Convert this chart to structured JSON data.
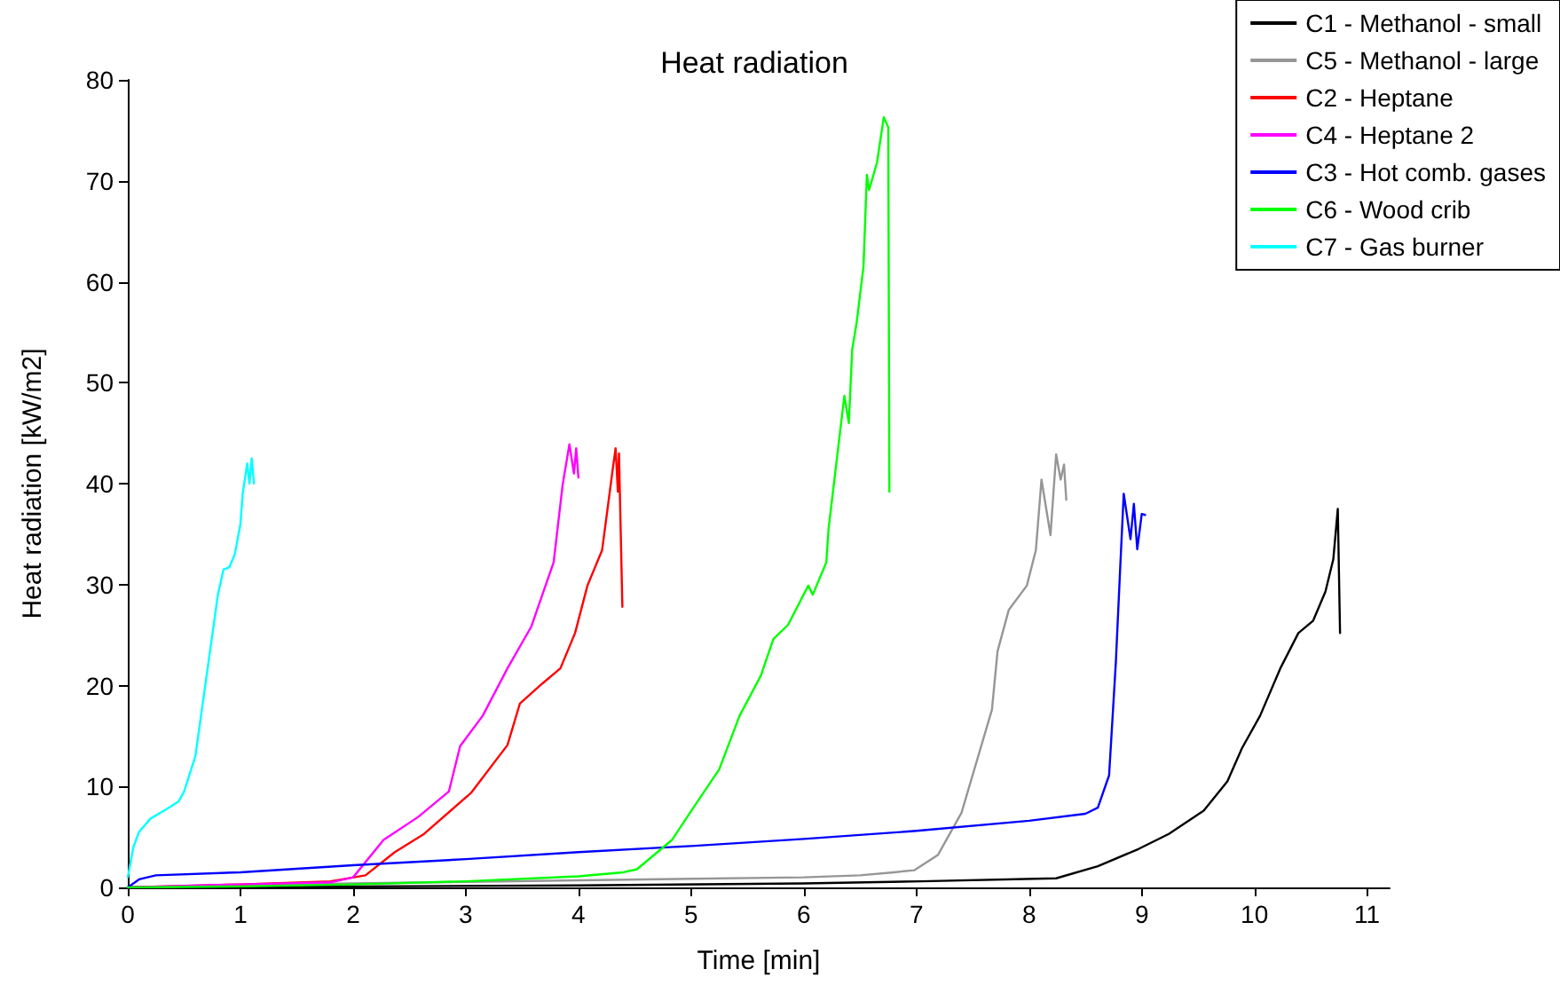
{
  "chart_data": {
    "type": "line",
    "title": "Heat radiation",
    "xlabel": "Time [min]",
    "ylabel": "Heat radiation [kW/m2]",
    "xlim": [
      0,
      11.2
    ],
    "xticks": [
      0,
      1,
      2,
      3,
      4,
      5,
      6,
      7,
      8,
      9,
      10,
      11
    ],
    "ylim": [
      0,
      80
    ],
    "yticks": [
      0,
      10,
      20,
      30,
      40,
      50,
      60,
      70,
      80
    ],
    "grid": false,
    "legend": "top right",
    "marker": "none",
    "line_style": "solid",
    "series": [
      {
        "name": "C1 - Methanol - small",
        "color": "#000000",
        "x": [
          0,
          2,
          4,
          6,
          7.04,
          8.24,
          8.61,
          8.97,
          9.24,
          9.55,
          9.76,
          9.89,
          10.05,
          10.23,
          10.39,
          10.52,
          10.63,
          10.7,
          10.74,
          10.76
        ],
        "values": [
          0,
          0.1,
          0.2,
          0.4,
          0.6,
          0.9,
          2.1,
          3.8,
          5.3,
          7.6,
          10.5,
          13.8,
          17,
          21.7,
          25.2,
          26.4,
          29.3,
          32.5,
          37.5,
          25.2
        ]
      },
      {
        "name": "C5 - Methanol - large",
        "color": "#969696",
        "x": [
          0,
          2,
          4,
          6,
          6.5,
          6.8,
          6.98,
          7.19,
          7.4,
          7.67,
          7.72,
          7.82,
          7.98,
          8.06,
          8.11,
          8.19,
          8.24,
          8.28,
          8.31,
          8.33
        ],
        "values": [
          0,
          0.4,
          0.7,
          1.0,
          1.2,
          1.5,
          1.7,
          3.2,
          7.4,
          17.6,
          23.4,
          27.5,
          29.9,
          33.4,
          40.4,
          34.9,
          42.9,
          40.4,
          41.9,
          38.4
        ]
      },
      {
        "name": "C2 - Heptane",
        "color": "#ff0000",
        "x": [
          0,
          1,
          1.8,
          2.11,
          2.37,
          2.63,
          3.05,
          3.37,
          3.48,
          3.68,
          3.84,
          3.97,
          4.08,
          4.21,
          4.31,
          4.33,
          4.35,
          4.36,
          4.39
        ],
        "values": [
          0,
          0.3,
          0.6,
          1.2,
          3.5,
          5.3,
          9.4,
          14.1,
          18.2,
          20.2,
          21.7,
          25.2,
          29.9,
          33.4,
          41.9,
          43.5,
          39.2,
          43,
          27.8
        ]
      },
      {
        "name": "C4 - Heptane 2",
        "color": "#ff00ff",
        "x": [
          0,
          1,
          1.8,
          2.0,
          2.27,
          2.58,
          2.85,
          2.95,
          3.15,
          3.37,
          3.58,
          3.78,
          3.86,
          3.92,
          3.96,
          3.98,
          4.0
        ],
        "values": [
          0,
          0.3,
          0.5,
          1,
          4.7,
          7,
          9.5,
          14,
          17,
          21.7,
          25.8,
          32.2,
          39.9,
          43.9,
          41,
          43.5,
          40.6
        ]
      },
      {
        "name": "C3 - Hot comb. gases",
        "color": "#0000ff",
        "x": [
          0,
          0.1,
          0.25,
          1,
          2,
          3,
          4,
          5,
          6,
          7,
          8,
          8.5,
          8.61,
          8.71,
          8.77,
          8.81,
          8.84,
          8.88,
          8.9,
          8.93,
          8.96,
          9.0,
          9.03
        ],
        "values": [
          0,
          0.8,
          1.2,
          1.5,
          2.2,
          2.8,
          3.5,
          4.1,
          4.8,
          5.6,
          6.6,
          7.3,
          7.9,
          11.1,
          22.3,
          32,
          39,
          36,
          34.5,
          38,
          33.5,
          37,
          36.9
        ]
      },
      {
        "name": "C6 - Wood crib",
        "color": "#00ff00",
        "x": [
          0,
          1,
          2,
          3,
          4,
          4.4,
          4.52,
          4.83,
          4.99,
          5.25,
          5.43,
          5.62,
          5.73,
          5.86,
          6.04,
          6.08,
          6.2,
          6.22,
          6.36,
          6.4,
          6.43,
          6.47,
          6.53,
          6.56,
          6.58,
          6.65,
          6.71,
          6.75,
          6.76
        ],
        "values": [
          0,
          0.1,
          0.3,
          0.6,
          1.1,
          1.5,
          1.8,
          4.7,
          7.4,
          11.7,
          17,
          21,
          24.6,
          26,
          29.9,
          29,
          32.2,
          35.5,
          48.7,
          46,
          53.3,
          56,
          61.5,
          70.6,
          69.1,
          71.8,
          76.3,
          75.3,
          39.2
        ]
      },
      {
        "name": "C7 - Gas burner",
        "color": "#00ffff",
        "x": [
          0,
          0.05,
          0.1,
          0.2,
          0.35,
          0.45,
          0.5,
          0.6,
          0.65,
          0.7,
          0.75,
          0.8,
          0.85,
          0.9,
          0.95,
          1.0,
          1.02,
          1.06,
          1.08,
          1.1,
          1.12
        ],
        "values": [
          1,
          4,
          5.5,
          6.8,
          7.8,
          8.5,
          9.5,
          13,
          17,
          21,
          25,
          29,
          31.5,
          31.7,
          33,
          36,
          39,
          42,
          40,
          42.5,
          40
        ]
      }
    ]
  }
}
